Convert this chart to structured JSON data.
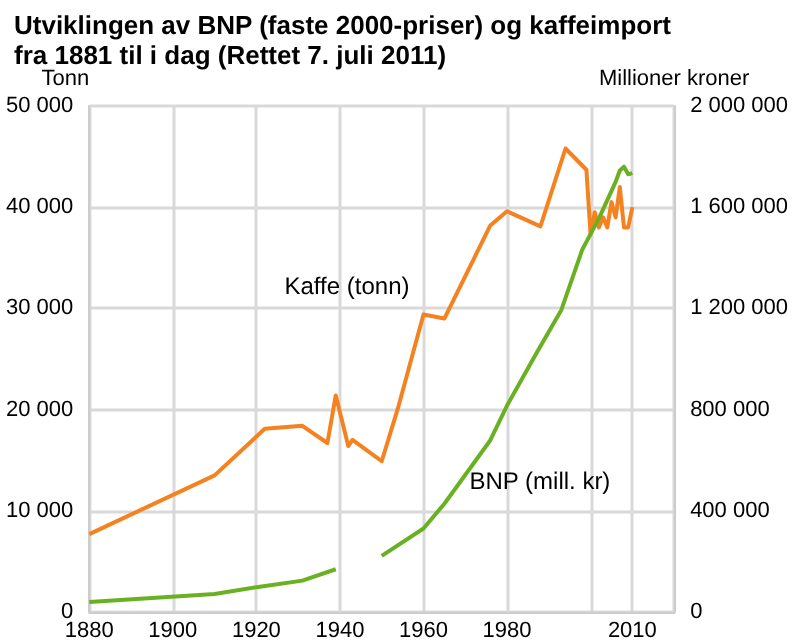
{
  "chart_data": {
    "type": "line",
    "title": "Utviklingen av BNP (faste 2000-priser) og kaffeimport\nfra 1881 til i dag (Rettet 7. juli 2011)",
    "ylabel": "Tonn",
    "y2label": "Millioner kroner",
    "xlim": [
      1880,
      2020
    ],
    "xticks": [
      1880,
      1900,
      1920,
      1940,
      1960,
      1980,
      {
        "value": 2000,
        "label": null
      },
      2010,
      {
        "value": 2020,
        "label": null
      }
    ],
    "ylim": [
      0,
      50000
    ],
    "yticks": [
      {
        "value": 0,
        "label": "0"
      },
      {
        "value": 10000,
        "label": "10 000"
      },
      {
        "value": 20000,
        "label": "20 000"
      },
      {
        "value": 30000,
        "label": "30 000"
      },
      {
        "value": 40000,
        "label": "40 000"
      },
      {
        "value": 50000,
        "label": "50 000"
      }
    ],
    "y2lim": [
      0,
      2000000
    ],
    "y2ticks": [
      {
        "value": 0,
        "label": "0"
      },
      {
        "value": 400000,
        "label": "400 000"
      },
      {
        "value": 800000,
        "label": "800 000"
      },
      {
        "value": 1200000,
        "label": "1 200 000"
      },
      {
        "value": 1600000,
        "label": "1 600 000"
      },
      {
        "value": 2000000,
        "label": "2 000 000"
      }
    ],
    "grid": true,
    "legend": false,
    "marker": "none",
    "line_style": "solid",
    "series": [
      {
        "name": "Kaffe (tonn)",
        "color": "#f58220",
        "x": [
          1880,
          1910,
          1922,
          1931,
          1937,
          1939,
          1942,
          1943,
          1950,
          1954,
          1960,
          1965,
          1976,
          1980,
          1988,
          1994,
          1999,
          2000,
          2001,
          2002,
          2003,
          2004,
          2005,
          2006,
          2007,
          2008,
          2009,
          2010
        ],
        "values": [
          7700,
          13500,
          18100,
          18400,
          16700,
          21400,
          16400,
          17000,
          14900,
          20300,
          29400,
          29000,
          38200,
          39600,
          38100,
          45800,
          43700,
          37300,
          39500,
          38000,
          39000,
          38000,
          40500,
          39000,
          42000,
          38000,
          38000,
          40000
        ]
      },
      {
        "name": "BNP (mill. kr)",
        "color": "#6ab023",
        "axis": "y2",
        "x": [
          1880,
          1910,
          1920,
          1931,
          1939,
          1945,
          1950,
          1960,
          1965,
          1976,
          1980,
          1987,
          1993,
          1998,
          2002,
          2006,
          2007,
          2008,
          2009,
          2010
        ],
        "values": [
          40000,
          71000,
          98000,
          124000,
          169000,
          null,
          222000,
          330000,
          428000,
          679000,
          816000,
          1022000,
          1194000,
          1432000,
          1556000,
          1700000,
          1745000,
          1760000,
          1730000,
          1735000
        ]
      }
    ]
  }
}
